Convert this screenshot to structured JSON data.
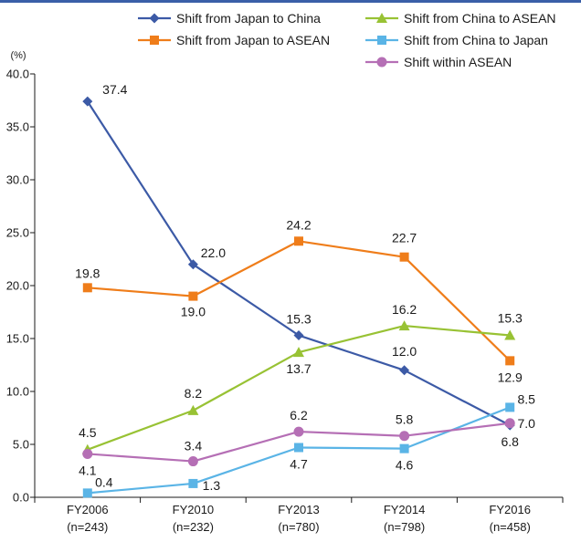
{
  "chart_data": {
    "type": "line",
    "y_unit": "(%)",
    "ylim": [
      0,
      40
    ],
    "yticks": [
      "0.0",
      "5.0",
      "10.0",
      "15.0",
      "20.0",
      "25.0",
      "30.0",
      "35.0",
      "40.0"
    ],
    "categories": [
      "FY2006",
      "FY2010",
      "FY2013",
      "FY2014",
      "FY2016"
    ],
    "category_sublabels": [
      "(n=243)",
      "(n=232)",
      "(n=780)",
      "(n=798)",
      "(n=458)"
    ],
    "legend_position": "top",
    "grid": false,
    "series": [
      {
        "name": "Shift from Japan to China",
        "color": "#3c5aa6",
        "marker": "diamond",
        "values": [
          37.4,
          22.0,
          15.3,
          12.0,
          6.8
        ]
      },
      {
        "name": "Shift from Japan to ASEAN",
        "color": "#ef7d1a",
        "marker": "square",
        "values": [
          19.8,
          19.0,
          24.2,
          22.7,
          12.9
        ]
      },
      {
        "name": "Shift from China to ASEAN",
        "color": "#98c234",
        "marker": "triangle",
        "values": [
          4.5,
          8.2,
          13.7,
          16.2,
          15.3
        ]
      },
      {
        "name": "Shift from China to Japan",
        "color": "#5ab4e6",
        "marker": "square",
        "values": [
          0.4,
          1.3,
          4.7,
          4.6,
          8.5
        ]
      },
      {
        "name": "Shift within ASEAN",
        "color": "#b56fb5",
        "marker": "circle",
        "values": [
          4.1,
          3.4,
          6.2,
          5.8,
          7.0
        ]
      }
    ],
    "data_labels": [
      [
        "37.4",
        "22.0",
        "15.3",
        "12.0",
        "6.8"
      ],
      [
        "19.8",
        "19.0",
        "24.2",
        "22.7",
        "12.9"
      ],
      [
        "4.5",
        "8.2",
        "13.7",
        "16.2",
        "15.3"
      ],
      [
        "0.4",
        "1.3",
        "4.7",
        "4.6",
        "8.5"
      ],
      [
        "4.1",
        "3.4",
        "6.2",
        "5.8",
        "7.0"
      ]
    ]
  }
}
